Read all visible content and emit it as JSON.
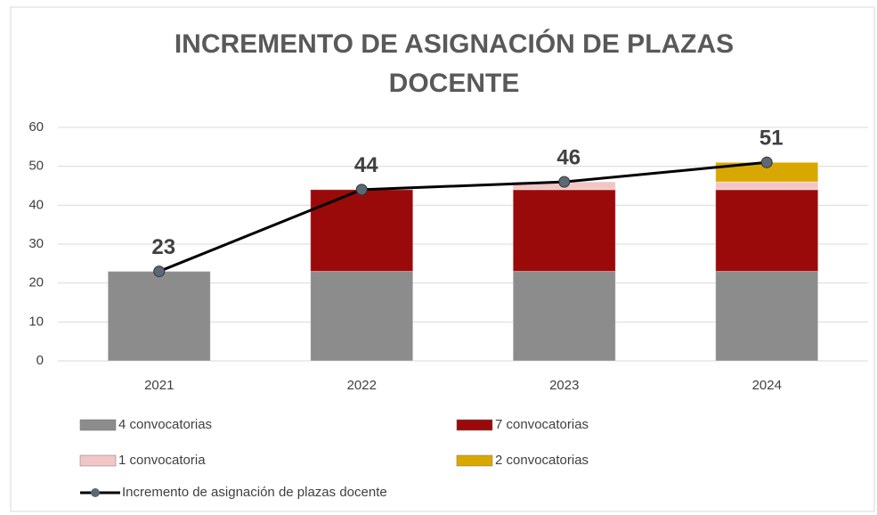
{
  "chart_data": {
    "type": "stacked-bar-line",
    "title": "INCREMENTO DE ASIGNACIÓN DE PLAZAS DOCENTE",
    "categories": [
      "2021",
      "2022",
      "2023",
      "2024"
    ],
    "series": [
      {
        "name": "4 convocatorias",
        "color": "#8c8c8c",
        "values": [
          23,
          23,
          23,
          23
        ]
      },
      {
        "name": "7 convocatorias",
        "color": "#9b0a0a",
        "values": [
          0,
          21,
          21,
          21
        ]
      },
      {
        "name": "1 convocatoria",
        "color": "#f2c6c6",
        "values": [
          0,
          0,
          2,
          2
        ]
      },
      {
        "name": "2 convocatorias",
        "color": "#d9a800",
        "values": [
          0,
          0,
          0,
          5
        ]
      }
    ],
    "line": {
      "name": "Incremento de asignación de plazas docente",
      "color": "#000000",
      "marker_color": "#5b6876",
      "values": [
        23,
        44,
        46,
        51
      ]
    },
    "ylim": [
      0,
      60
    ],
    "yticks": [
      0,
      10,
      20,
      30,
      40,
      50,
      60
    ],
    "grid": true
  }
}
